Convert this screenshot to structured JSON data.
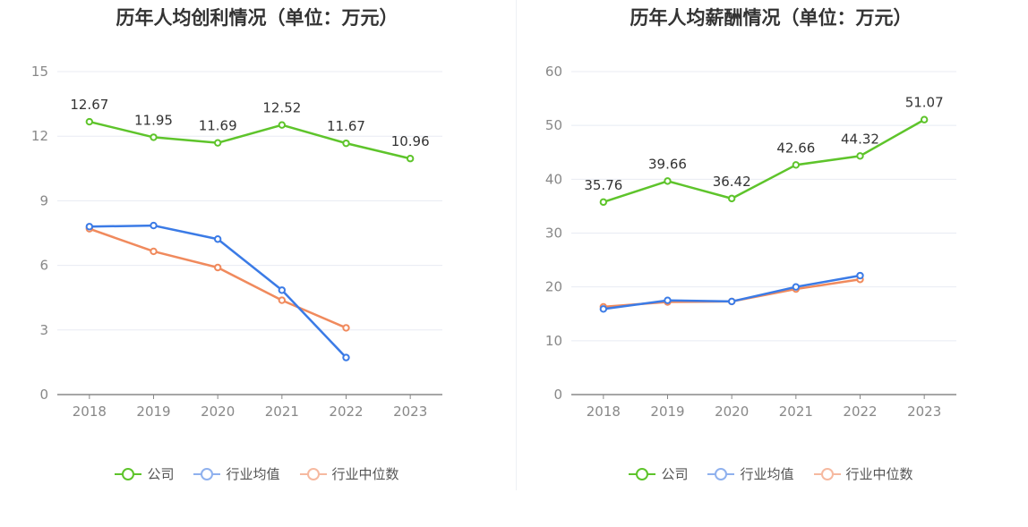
{
  "colors": {
    "company": "#5ec42b",
    "industry_avg": "#3b7be6",
    "industry_median": "#f08a5d",
    "legend_avg": "#8fb1ee",
    "legend_median": "#f6b9a0"
  },
  "legend": {
    "company": "公司",
    "industry_avg": "行业均值",
    "industry_median": "行业中位数"
  },
  "chart_data": [
    {
      "type": "line",
      "title": "历年人均创利情况（单位：万元）",
      "categories": [
        "2018",
        "2019",
        "2020",
        "2021",
        "2022",
        "2023"
      ],
      "ylim": [
        0,
        15
      ],
      "yticks": [
        0,
        3,
        6,
        9,
        12,
        15
      ],
      "grid": true,
      "legend_position": "bottom",
      "series": [
        {
          "name": "公司",
          "values": [
            12.67,
            11.95,
            11.69,
            12.52,
            11.67,
            10.96
          ],
          "labels": [
            "12.67",
            "11.95",
            "11.69",
            "12.52",
            "11.67",
            "10.96"
          ]
        },
        {
          "name": "行业均值",
          "values": [
            7.8,
            7.85,
            7.22,
            4.85,
            1.72,
            null
          ]
        },
        {
          "name": "行业中位数",
          "values": [
            7.7,
            6.65,
            5.9,
            4.38,
            3.1,
            null
          ]
        }
      ]
    },
    {
      "type": "line",
      "title": "历年人均薪酬情况（单位：万元）",
      "categories": [
        "2018",
        "2019",
        "2020",
        "2021",
        "2022",
        "2023"
      ],
      "ylim": [
        0,
        60
      ],
      "yticks": [
        0,
        10,
        20,
        30,
        40,
        50,
        60
      ],
      "grid": true,
      "legend_position": "bottom",
      "series": [
        {
          "name": "公司",
          "values": [
            35.76,
            39.66,
            36.42,
            42.66,
            44.32,
            51.07
          ],
          "labels": [
            "35.76",
            "39.66",
            "36.42",
            "42.66",
            "44.32",
            "51.07"
          ]
        },
        {
          "name": "行业均值",
          "values": [
            15.9,
            17.5,
            17.3,
            20.0,
            22.1,
            null
          ]
        },
        {
          "name": "行业中位数",
          "values": [
            16.3,
            17.2,
            17.3,
            19.6,
            21.4,
            null
          ]
        }
      ]
    }
  ]
}
